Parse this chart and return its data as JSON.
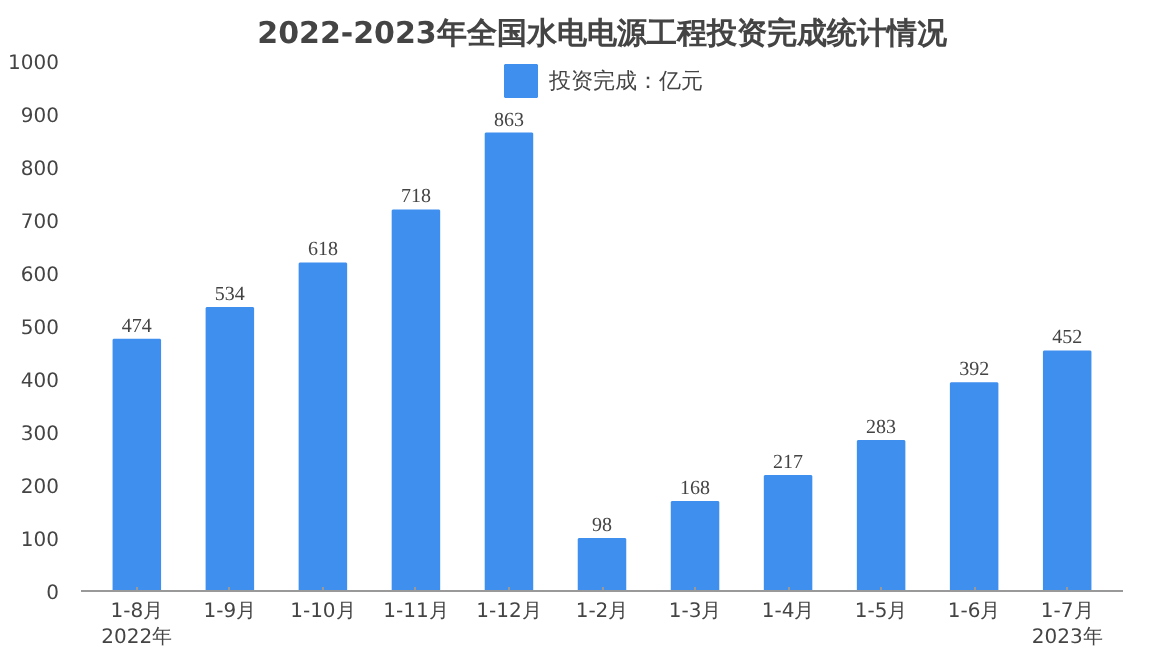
{
  "chart_data": {
    "type": "bar",
    "title": "2022-2023年全国水电电源工程投资完成统计情况",
    "categories": [
      "1-8月",
      "1-9月",
      "1-10月",
      "1-11月",
      "1-12月",
      "1-2月",
      "1-3月",
      "1-4月",
      "1-5月",
      "1-6月",
      "1-7月"
    ],
    "series": [
      {
        "name": "投资完成：亿元",
        "color": "#3f8fef",
        "values": [
          474,
          534,
          618,
          718,
          863,
          98,
          168,
          217,
          283,
          392,
          452
        ]
      }
    ],
    "ylim": [
      0,
      1000
    ],
    "yticks": [
      0,
      100,
      200,
      300,
      400,
      500,
      600,
      700,
      800,
      900,
      1000
    ],
    "data_labels": true,
    "grid": false,
    "legend": "top",
    "annotations": [
      "2022年",
      "2023年"
    ]
  }
}
